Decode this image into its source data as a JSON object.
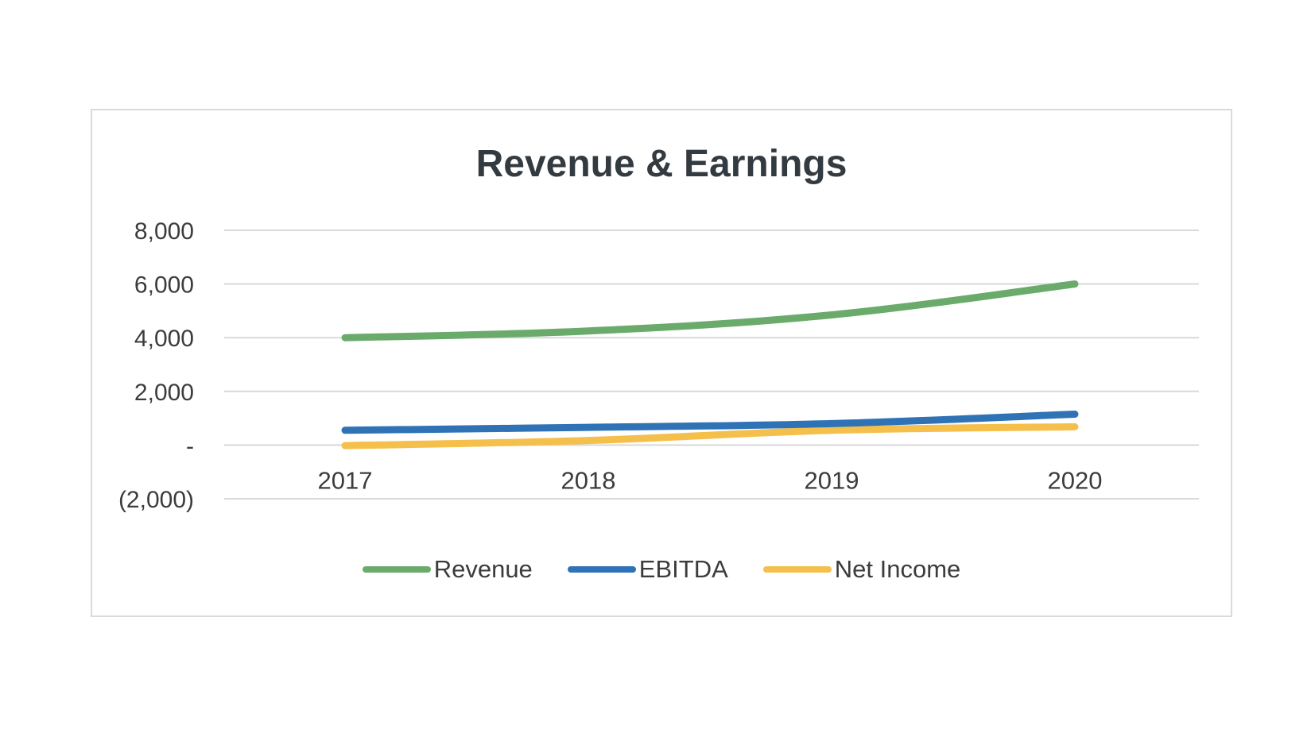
{
  "chart_data": {
    "type": "line",
    "title": "Revenue & Earnings",
    "xlabel": "",
    "ylabel": "",
    "categories": [
      "2017",
      "2018",
      "2019",
      "2020"
    ],
    "ylim": [
      -2000,
      8000
    ],
    "yticks": [
      -2000,
      0,
      2000,
      4000,
      6000,
      8000
    ],
    "ytick_labels": [
      "(2,000)",
      "-",
      "2,000",
      "4,000",
      "6,000",
      "8,000"
    ],
    "grid": true,
    "legend_position": "bottom-center",
    "series": [
      {
        "name": "Revenue",
        "color": "#6aab6c",
        "values": [
          4000,
          4250,
          4850,
          6000
        ]
      },
      {
        "name": "EBITDA",
        "color": "#2f73b6",
        "values": [
          550,
          660,
          800,
          1150
        ]
      },
      {
        "name": "Net Income",
        "color": "#f5bf4c",
        "values": [
          -20,
          170,
          550,
          680
        ]
      }
    ]
  }
}
